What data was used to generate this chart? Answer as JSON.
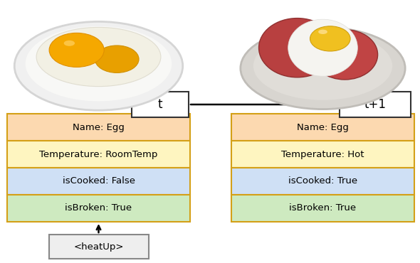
{
  "left_label": "t",
  "right_label": "t+1",
  "left_rows": [
    {
      "text": "Name: Egg",
      "color": "#fcd9b0"
    },
    {
      "text": "Temperature: RoomTemp",
      "color": "#fef5c0"
    },
    {
      "text": "isCooked: False",
      "color": "#cfe0f5"
    },
    {
      "text": "isBroken: True",
      "color": "#ceeac0"
    }
  ],
  "right_rows": [
    {
      "text": "Name: Egg",
      "color": "#fcd9b0"
    },
    {
      "text": "Temperature: Hot",
      "color": "#fef5c0"
    },
    {
      "text": "isCooked: True",
      "color": "#cfe0f5"
    },
    {
      "text": "isBroken: True",
      "color": "#ceeac0"
    }
  ],
  "action_text": "<heatUp>",
  "action_box_color": "#eeeeee",
  "border_color": "#d4a017",
  "label_box_color": "#ffffff",
  "label_border_color": "#333333",
  "font_size": 9.5,
  "title_font_size": 12
}
